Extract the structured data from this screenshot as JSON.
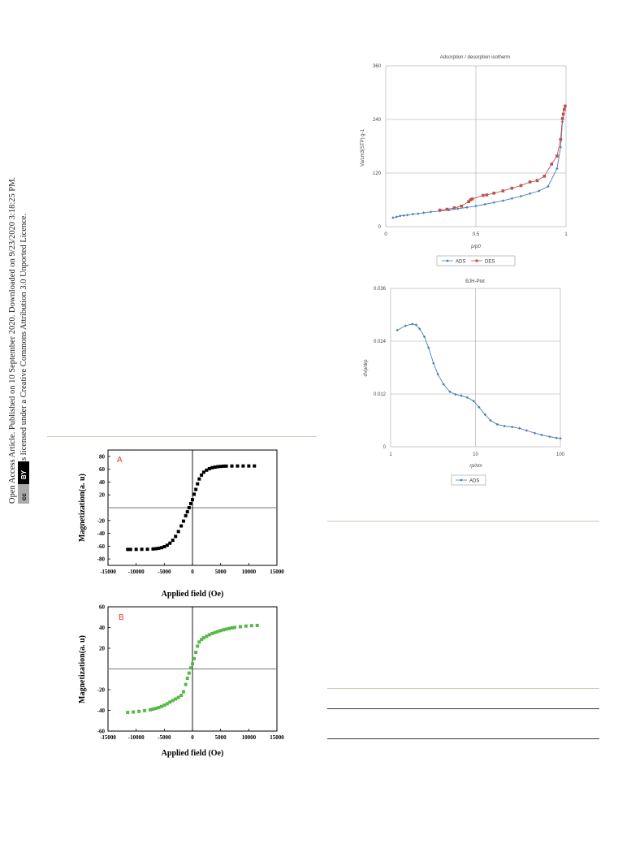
{
  "side_notice": {
    "line1": "Open Access Article. Published on 10 September 2020. Downloaded on 9/23/2020 3:18:25 PM.",
    "line2": "This article is licensed under a Creative Commons Attribution 3.0 Unported Licence.",
    "cc_badge": "cc",
    "by_badge": "BY"
  },
  "colors": {
    "ads": "#4a7ebb",
    "des": "#c0504d",
    "panel_a": "#000000",
    "panel_b": "#55b946",
    "grid": "#a6a6a6"
  },
  "chart_data": [
    {
      "id": "isotherm",
      "type": "line",
      "title": "Adsorption / desorption isotherm",
      "xlabel": "p/p0",
      "ylabel": "Va/cm3(STP) g-1",
      "xlim": [
        0,
        1
      ],
      "ylim": [
        0,
        360
      ],
      "xticks": [
        "0",
        "0.5",
        "1"
      ],
      "yticks": [
        "0",
        "120",
        "240",
        "360"
      ],
      "grid": true,
      "legend": "bottom",
      "series": [
        {
          "name": "ADS",
          "color": "#4a7ebb",
          "marker": "diamond",
          "x": [
            0.04,
            0.06,
            0.08,
            0.1,
            0.12,
            0.15,
            0.18,
            0.21,
            0.25,
            0.3,
            0.35,
            0.4,
            0.45,
            0.5,
            0.55,
            0.6,
            0.65,
            0.7,
            0.75,
            0.8,
            0.85,
            0.9,
            0.95,
            0.97,
            0.98,
            0.99,
            0.995
          ],
          "y": [
            20,
            22,
            24,
            25,
            26,
            28,
            29,
            31,
            33,
            35,
            37,
            40,
            43,
            46,
            50,
            54,
            58,
            63,
            68,
            74,
            80,
            90,
            130,
            178,
            235,
            262,
            268
          ]
        },
        {
          "name": "DES",
          "color": "#c0504d",
          "marker": "square",
          "x": [
            0.995,
            0.99,
            0.985,
            0.98,
            0.97,
            0.95,
            0.92,
            0.88,
            0.84,
            0.8,
            0.75,
            0.7,
            0.65,
            0.6,
            0.56,
            0.54,
            0.48,
            0.47,
            0.46,
            0.42,
            0.38,
            0.34,
            0.3
          ],
          "y": [
            270,
            262,
            252,
            242,
            195,
            158,
            140,
            113,
            103,
            100,
            92,
            86,
            80,
            75,
            71,
            70,
            62,
            60,
            56,
            46,
            42,
            39,
            37
          ]
        }
      ]
    },
    {
      "id": "bjh",
      "type": "line",
      "title": "BJH-Plot",
      "xlabel": "rp/nm",
      "ylabel": "dVp/drp",
      "xscale": "log",
      "xlim": [
        1,
        100
      ],
      "ylim": [
        0,
        0.036
      ],
      "xticks": [
        "1",
        "10",
        "100"
      ],
      "yticks": [
        "0",
        "0.012",
        "0.024",
        "0.036"
      ],
      "grid": true,
      "legend": "bottom",
      "series": [
        {
          "name": "ADS",
          "color": "#4a7ebb",
          "marker": "diamond",
          "x": [
            1.2,
            1.5,
            1.8,
            2.0,
            2.2,
            2.5,
            2.8,
            3.2,
            3.6,
            4.2,
            5.0,
            5.8,
            6.8,
            8.0,
            9.5,
            11,
            13,
            15,
            18,
            22,
            27,
            33,
            40,
            50,
            60,
            75,
            90,
            100
          ],
          "y": [
            0.0265,
            0.0275,
            0.0279,
            0.0277,
            0.0268,
            0.025,
            0.0225,
            0.019,
            0.0165,
            0.0142,
            0.0125,
            0.0119,
            0.0116,
            0.0112,
            0.0104,
            0.009,
            0.0073,
            0.006,
            0.0051,
            0.0047,
            0.0045,
            0.0042,
            0.0037,
            0.0031,
            0.0027,
            0.0023,
            0.002,
            0.0019
          ]
        }
      ]
    },
    {
      "id": "panel-a",
      "type": "scatter",
      "title": "",
      "panel_label": "A",
      "xlabel": "Applied field (Oe)",
      "ylabel": "Magnetization(a. u)",
      "xlim": [
        -15000,
        15000
      ],
      "ylim": [
        -90,
        90
      ],
      "xticks": [
        "-15000",
        "-10000",
        "-5000",
        "0",
        "5000",
        "10000",
        "15000"
      ],
      "yticks": [
        "80",
        "60",
        "40",
        "20",
        "-20",
        "-40",
        "-60",
        "-80"
      ],
      "ms": 61,
      "width": 1300,
      "x": [
        -11500,
        -11000,
        -10000,
        -9000,
        -8000,
        -7000,
        -6500,
        -6000,
        -5500,
        -5000,
        -4500,
        -4000,
        -3500,
        -3000,
        -2500,
        -2000,
        -1600,
        -1200,
        -900,
        -600,
        -300,
        0,
        300,
        600,
        900,
        1200,
        1600,
        2000,
        2500,
        3000,
        3500,
        4000,
        4500,
        5000,
        5500,
        6000,
        7000,
        8000,
        9000,
        10000,
        11000
      ],
      "y": [
        -65.1,
        -65.1,
        -65,
        -64.9,
        -64.8,
        -64.4,
        -64,
        -63.3,
        -62.4,
        -60.9,
        -58.6,
        -55.4,
        -50.9,
        -44.8,
        -37.2,
        -28.5,
        -21,
        -12.5,
        -6.4,
        0,
        6.4,
        12.5,
        21,
        28.5,
        37.2,
        44.8,
        50.9,
        55.4,
        58.6,
        60.9,
        62.4,
        63.3,
        64,
        64.4,
        64.8,
        64.9,
        65,
        65.1,
        65.1,
        65.1,
        65.1
      ],
      "y_shift": -4
    },
    {
      "id": "panel-b",
      "type": "scatter",
      "title": "",
      "panel_label": "B",
      "xlabel": "Applied field (Oe)",
      "ylabel": "Magnetization(a. u)",
      "xlim": [
        -15000,
        15000
      ],
      "ylim": [
        -60,
        60
      ],
      "xticks": [
        "-15000",
        "-10000",
        "-5000",
        "0",
        "5000",
        "10000",
        "15000"
      ],
      "yticks": [
        "60",
        "40",
        "20",
        "-20",
        "-40",
        "-60"
      ],
      "x": [
        -11500,
        -10500,
        -9500,
        -8500,
        -7500,
        -7000,
        -6500,
        -6000,
        -5500,
        -5000,
        -4500,
        -4000,
        -3500,
        -3000,
        -2500,
        -2000,
        -1600,
        -1200,
        -900,
        -600,
        -300,
        0,
        300,
        600,
        900,
        1200,
        1600,
        2000,
        2500,
        3000,
        3500,
        4000,
        4500,
        5000,
        5500,
        6000,
        6500,
        7000,
        7500,
        8500,
        9500,
        10500,
        11500
      ],
      "y": [
        -42,
        -41.6,
        -41,
        -40.2,
        -39.4,
        -38.8,
        -38.1,
        -37.2,
        -36.2,
        -35,
        -33.6,
        -32,
        -30.5,
        -29,
        -27.5,
        -25.5,
        -22,
        -15,
        -9,
        -4,
        1,
        5,
        10,
        16,
        22,
        26,
        28.5,
        30,
        31.5,
        33,
        34.2,
        35.2,
        36.1,
        37,
        37.8,
        38.4,
        39,
        39.6,
        40.1,
        40.8,
        41.4,
        41.8,
        42
      ]
    }
  ]
}
